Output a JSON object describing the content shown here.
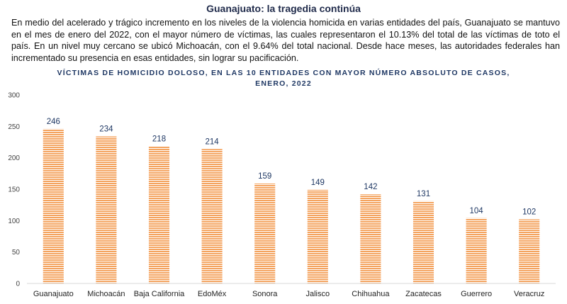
{
  "heading": "Guanajuato: la tragedia continúa",
  "intro": "En medio del acelerado y trágico incremento en los niveles de la violencia homicida en varias entidades del país, Guanajuato se mantuvo en el mes de enero del 2022, con el mayor número de víctimas, las cuales representaron el 10.13% del total de las víctimas de toto el país. En un nivel muy cercano se ubicó Michoacán, con el 9.64% del total nacional. Desde hace meses, las autoridades federales han incrementado su presencia en esas entidades, sin lograr su pacificación.",
  "chart_data": {
    "type": "bar",
    "title_line1": "VÍCTIMAS DE HOMICIDIO DOLOSO, EN LAS 10 ENTIDADES CON MAYOR NÚMERO ABSOLUTO DE CASOS,",
    "title_line2": "ENERO, 2022",
    "categories": [
      "Guanajuato",
      "Michoacán",
      "Baja California",
      "EdoMéx",
      "Sonora",
      "Jalisco",
      "Chihuahua",
      "Zacatecas",
      "Guerrero",
      "Veracruz"
    ],
    "values": [
      246,
      234,
      218,
      214,
      159,
      149,
      142,
      131,
      104,
      102
    ],
    "ylim": [
      0,
      300
    ],
    "yticks": [
      0,
      50,
      100,
      150,
      200,
      250,
      300
    ],
    "bar_color": "#f4a460",
    "stripe_color": "#ffffff",
    "label_color": "#1f3864",
    "grid": false
  }
}
